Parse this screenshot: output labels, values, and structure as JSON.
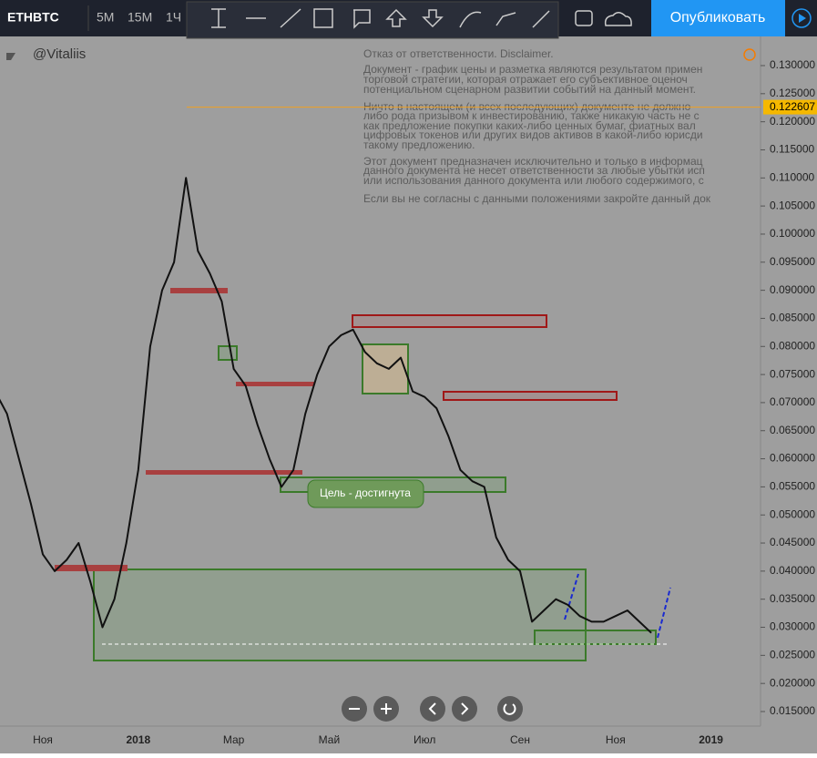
{
  "toolbar": {
    "symbol": "ETHBTC",
    "intervals": [
      "5M",
      "15M",
      "1Ч"
    ],
    "publish": "Опубликовать"
  },
  "chart_data": {
    "type": "line",
    "author": "@Vitaliis",
    "color": "#111111",
    "disclaimer": [
      "Отказ от ответственности. Disclaimer.",
      "Документ - график цены и разметка являются результатом примен",
      "торговой стратегии, которая отражает его субъективное оценоч",
      "потенциальном сценарном развитии событий на данный момент.",
      "Ничто в настоящем (и всех последующих) документе не должно",
      "либо рода призывом к инвестированию, также никакую часть не с",
      "как предложение покупки каких-либо ценных бумаг, фиатных вал",
      "цифровых токенов или других видов активов в какой-либо юрисди",
      "такому предложению.",
      "Этот документ предназначен исключительно и только в информац",
      "данного документа не несет ответственности за любые убытки исп",
      "или использования данного документа или любого содержимого, с",
      "Если вы не согласны с данными положениями закройте данный док"
    ],
    "annotation": "Цель - достигнута",
    "price_line": 0.122607,
    "categories": [
      null,
      null,
      null,
      null,
      "Ноя",
      null,
      null,
      null,
      null,
      null,
      null,
      null,
      "2018",
      null,
      null,
      null,
      null,
      null,
      null,
      null,
      "Мар",
      null,
      null,
      null,
      null,
      null,
      null,
      null,
      "Май",
      null,
      null,
      null,
      null,
      null,
      null,
      null,
      "Июл",
      null,
      null,
      null,
      null,
      null,
      null,
      null,
      "Сен",
      null,
      null,
      null,
      null,
      null,
      null,
      null,
      "Ноя",
      null,
      null,
      null,
      null,
      null,
      null,
      null,
      "2019"
    ],
    "values": [
      0.072,
      0.068,
      0.06,
      0.052,
      0.043,
      0.04,
      0.042,
      0.045,
      0.038,
      0.03,
      0.035,
      0.045,
      0.058,
      0.08,
      0.09,
      0.095,
      0.11,
      0.097,
      0.093,
      0.088,
      0.076,
      0.073,
      0.066,
      0.06,
      0.055,
      0.058,
      0.068,
      0.075,
      0.08,
      0.082,
      0.083,
      0.079,
      0.077,
      0.076,
      0.078,
      0.072,
      0.071,
      0.069,
      0.064,
      0.058,
      0.056,
      0.055,
      0.046,
      0.042,
      0.04,
      0.031,
      0.033,
      0.035,
      0.034,
      0.032,
      0.031,
      0.031,
      0.032,
      0.033,
      0.031,
      0.029,
      null,
      null,
      null,
      null,
      null
    ],
    "ylim": [
      0.015,
      0.13
    ],
    "yticks": [
      {
        "value": 0.13,
        "label": "0.130000"
      },
      {
        "value": 0.125,
        "label": "0.125000"
      },
      {
        "value": 0.12,
        "label": "0.120000"
      },
      {
        "value": 0.115,
        "label": "0.115000"
      },
      {
        "value": 0.11,
        "label": "0.110000"
      },
      {
        "value": 0.105,
        "label": "0.105000"
      },
      {
        "value": 0.1,
        "label": "0.100000"
      },
      {
        "value": 0.095,
        "label": "0.095000"
      },
      {
        "value": 0.09,
        "label": "0.090000"
      },
      {
        "value": 0.085,
        "label": "0.085000"
      },
      {
        "value": 0.08,
        "label": "0.080000"
      },
      {
        "value": 0.075,
        "label": "0.075000"
      },
      {
        "value": 0.07,
        "label": "0.070000"
      },
      {
        "value": 0.065,
        "label": "0.065000"
      },
      {
        "value": 0.06,
        "label": "0.060000"
      },
      {
        "value": 0.055,
        "label": "0.055000"
      },
      {
        "value": 0.05,
        "label": "0.050000"
      },
      {
        "value": 0.045,
        "label": "0.045000"
      },
      {
        "value": 0.04,
        "label": "0.040000"
      },
      {
        "value": 0.035,
        "label": "0.035000"
      },
      {
        "value": 0.03,
        "label": "0.030000"
      },
      {
        "value": 0.025,
        "label": "0.025000"
      },
      {
        "value": 0.02,
        "label": "0.020000"
      },
      {
        "value": 0.015,
        "label": "0.015000"
      }
    ]
  }
}
